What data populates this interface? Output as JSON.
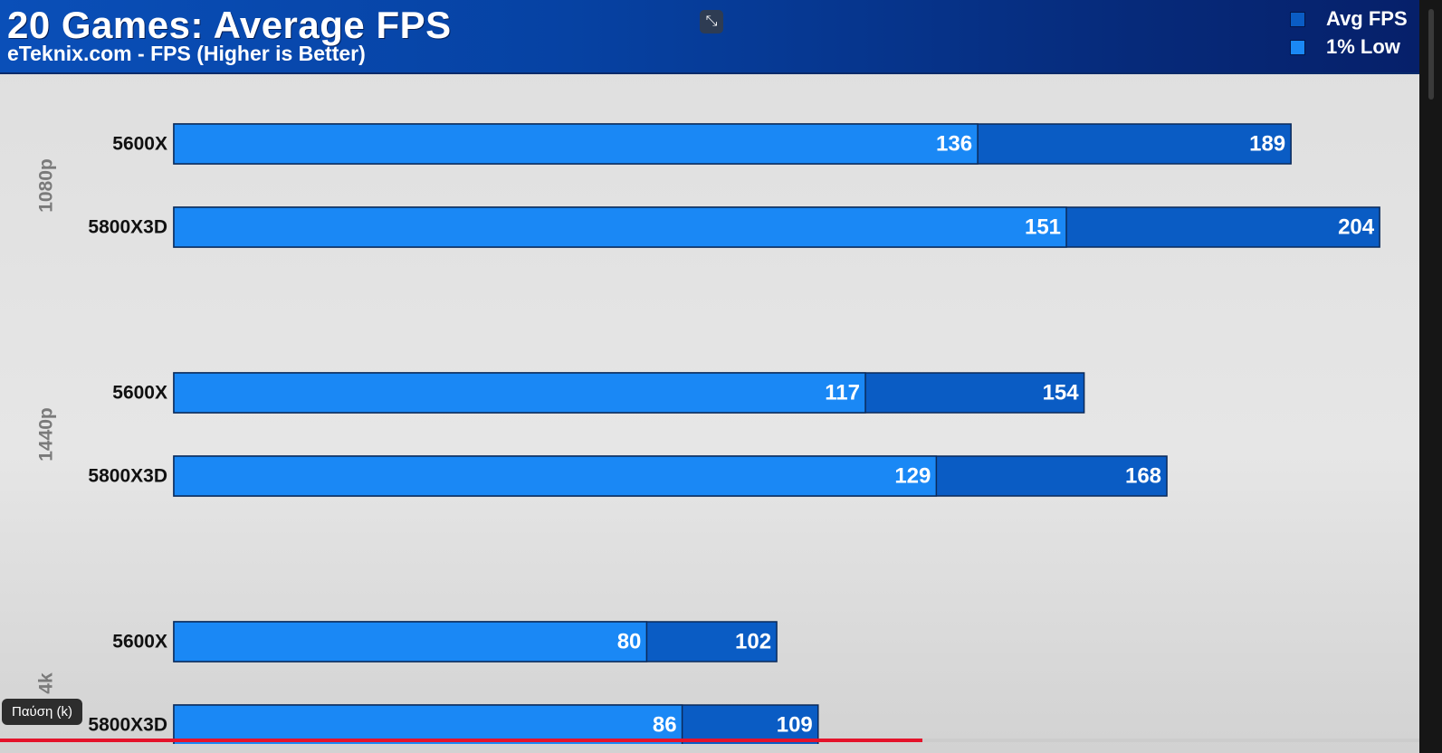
{
  "chart_data": {
    "type": "bar",
    "orientation": "horizontal",
    "stacked": false,
    "title": "20 Games: Average FPS",
    "subtitle": "eTeknix.com - FPS (Higher is Better)",
    "groups": [
      "1080p",
      "1440p",
      "4k"
    ],
    "categories": [
      "5600X",
      "5800X3D"
    ],
    "series": [
      {
        "name": "Avg FPS",
        "color": "#0a5cc4",
        "values": [
          [
            189,
            204
          ],
          [
            154,
            168
          ],
          [
            102,
            109
          ]
        ]
      },
      {
        "name": "1% Low",
        "color": "#1a88f5",
        "values": [
          [
            136,
            151
          ],
          [
            117,
            129
          ],
          [
            80,
            86
          ]
        ]
      }
    ],
    "xlim": [
      0,
      210
    ],
    "legend_position": "top-right",
    "grid": false
  },
  "overlay": {
    "tooltip": "Παύση (k)",
    "exit_fullscreen_icon": "exit-fullscreen-icon",
    "progress_fraction": 0.65,
    "progress_color": "#e4132b"
  }
}
